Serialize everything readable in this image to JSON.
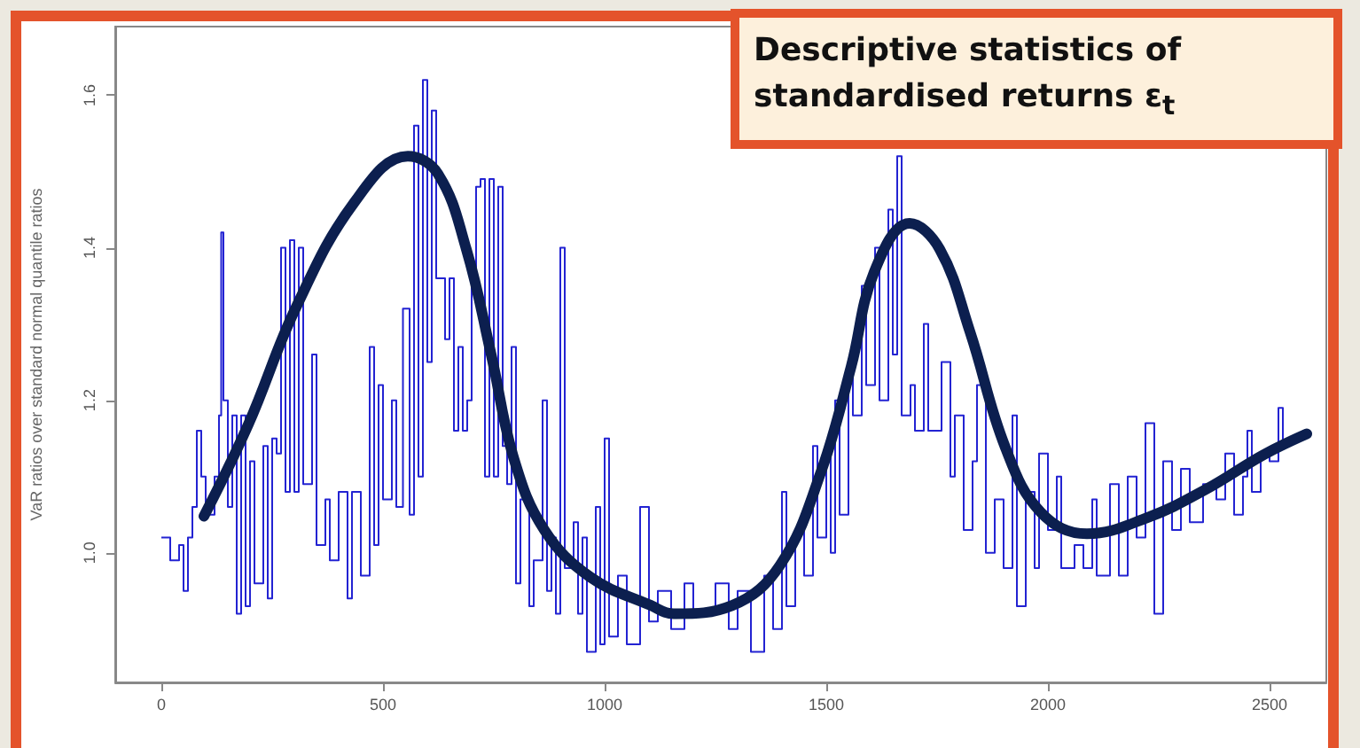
{
  "chart_data": {
    "type": "line",
    "title": "Descriptive statistics of standardised returns ε$_{t}$",
    "ylabel": "VaR ratios over standard normal quantile ratios",
    "xlim": [
      -104,
      2628
    ],
    "xticks": [
      0,
      500,
      1000,
      1500,
      2000,
      2500
    ],
    "ylim": [
      0.83,
      1.69
    ],
    "yticks": [
      {
        "value": 1,
        "label": "1.0"
      },
      {
        "value": 1.2,
        "label": "1.2"
      },
      {
        "value": 1.4,
        "label": "1.4"
      },
      {
        "value": 1.6,
        "label": "1.6"
      }
    ],
    "grid": false,
    "marker": "none",
    "line_style": "solid",
    "series": [
      {
        "type": "step",
        "color": "#2323d2",
        "x": [
          0,
          20,
          40,
          50,
          60,
          70,
          80,
          90,
          100,
          120,
          130,
          135,
          140,
          150,
          160,
          170,
          180,
          190,
          200,
          210,
          230,
          240,
          250,
          260,
          270,
          280,
          290,
          300,
          310,
          320,
          340,
          350,
          370,
          380,
          400,
          420,
          430,
          450,
          470,
          480,
          490,
          500,
          520,
          530,
          545,
          560,
          570,
          580,
          590,
          600,
          610,
          620,
          640,
          650,
          660,
          670,
          680,
          690,
          700,
          710,
          720,
          730,
          740,
          750,
          760,
          770,
          780,
          790,
          800,
          810,
          830,
          840,
          860,
          870,
          880,
          890,
          900,
          910,
          930,
          940,
          950,
          960,
          980,
          990,
          1000,
          1010,
          1030,
          1050,
          1080,
          1100,
          1120,
          1150,
          1180,
          1200,
          1250,
          1280,
          1300,
          1330,
          1360,
          1380,
          1400,
          1410,
          1430,
          1450,
          1470,
          1480,
          1500,
          1510,
          1520,
          1530,
          1550,
          1560,
          1580,
          1590,
          1610,
          1620,
          1640,
          1650,
          1660,
          1670,
          1690,
          1700,
          1720,
          1730,
          1760,
          1780,
          1790,
          1810,
          1830,
          1840,
          1860,
          1880,
          1900,
          1920,
          1930,
          1950,
          1970,
          1980,
          2000,
          2020,
          2030,
          2060,
          2080,
          2100,
          2110,
          2140,
          2160,
          2180,
          2200,
          2220,
          2240,
          2260,
          2280,
          2300,
          2320,
          2350,
          2380,
          2400,
          2420,
          2440,
          2450,
          2460,
          2480,
          2500,
          2520,
          2530
        ],
        "values": [
          1.02,
          0.99,
          1.01,
          0.95,
          1.02,
          1.06,
          1.16,
          1.1,
          1.05,
          1.1,
          1.18,
          1.42,
          1.2,
          1.06,
          1.18,
          0.92,
          1.18,
          0.93,
          1.12,
          0.96,
          1.14,
          0.94,
          1.15,
          1.13,
          1.4,
          1.08,
          1.41,
          1.08,
          1.4,
          1.09,
          1.26,
          1.01,
          1.07,
          0.99,
          1.08,
          0.94,
          1.08,
          0.97,
          1.27,
          1.01,
          1.22,
          1.07,
          1.2,
          1.06,
          1.32,
          1.05,
          1.56,
          1.1,
          1.62,
          1.25,
          1.58,
          1.36,
          1.28,
          1.36,
          1.16,
          1.27,
          1.16,
          1.2,
          1.37,
          1.48,
          1.49,
          1.1,
          1.49,
          1.1,
          1.48,
          1.14,
          1.09,
          1.27,
          0.96,
          1.07,
          0.93,
          0.99,
          1.2,
          0.95,
          1.02,
          0.92,
          1.4,
          0.98,
          1.04,
          0.92,
          1.02,
          0.87,
          1.06,
          0.88,
          1.15,
          0.89,
          0.97,
          0.88,
          1.06,
          0.91,
          0.95,
          0.9,
          0.96,
          0.92,
          0.96,
          0.9,
          0.95,
          0.87,
          0.97,
          0.9,
          1.08,
          0.93,
          1.03,
          0.97,
          1.14,
          1.02,
          1.14,
          1,
          1.2,
          1.05,
          1.23,
          1.18,
          1.35,
          1.22,
          1.4,
          1.2,
          1.45,
          1.26,
          1.52,
          1.18,
          1.22,
          1.16,
          1.3,
          1.16,
          1.25,
          1.1,
          1.18,
          1.03,
          1.12,
          1.22,
          1,
          1.07,
          0.98,
          1.18,
          0.93,
          1.08,
          0.98,
          1.13,
          1.03,
          1.1,
          0.98,
          1.01,
          0.98,
          1.07,
          0.97,
          1.09,
          0.97,
          1.1,
          1.02,
          1.17,
          0.92,
          1.12,
          1.03,
          1.11,
          1.04,
          1.09,
          1.07,
          1.13,
          1.05,
          1.1,
          1.16,
          1.08,
          1.13,
          1.12,
          1.19,
          1.14
        ]
      },
      {
        "color": "#0c1f4f",
        "x": [
          96,
          196,
          304,
          436,
          556,
          624,
          688,
          744,
          796,
          864,
          968,
          1104,
          1156,
          1288,
          1396,
          1488,
          1556,
          1608,
          1688,
          1756,
          1824,
          1904,
          1984,
          2088,
          2224,
          2356,
          2488,
          2584
        ],
        "values": [
          1.048,
          1.168,
          1.322,
          1.46,
          1.52,
          1.497,
          1.398,
          1.26,
          1.122,
          1.03,
          0.968,
          0.931,
          0.92,
          0.931,
          0.984,
          1.106,
          1.244,
          1.368,
          1.432,
          1.398,
          1.29,
          1.138,
          1.053,
          1.025,
          1.046,
          1.083,
          1.129,
          1.156
        ]
      }
    ]
  }
}
